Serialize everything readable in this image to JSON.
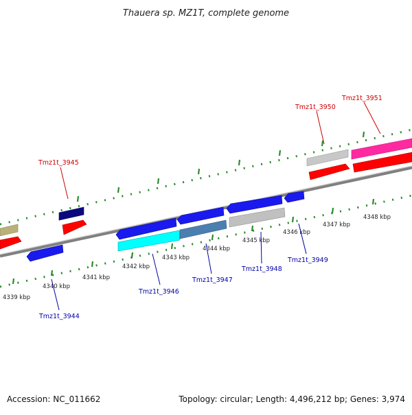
{
  "title": "Thauera sp. MZ1T, complete genome",
  "footer": {
    "accession": "Accession: NC_011662",
    "stats": "Topology: circular; Length: 4,496,212 bp; Genes: 3,974"
  },
  "colors": {
    "backbone": "#808080",
    "tick": "#2a8a2a",
    "label_top": "#cc0000",
    "label_bottom": "#0000aa"
  },
  "kbp_labels": [
    "4339 kbp",
    "4340 kbp",
    "4341 kbp",
    "4342 kbp",
    "4343 kbp",
    "4344 kbp",
    "4345 kbp",
    "4346 kbp",
    "4347 kbp",
    "4348 kbp"
  ],
  "gene_labels": {
    "top": [
      "Tmz1t_3945",
      "Tmz1t_3950",
      "Tmz1t_3951"
    ],
    "bottom": [
      "Tmz1t_3944",
      "Tmz1t_3946",
      "Tmz1t_3947",
      "Tmz1t_3948",
      "Tmz1t_3949"
    ]
  },
  "features": [
    {
      "strand": "forward-outer",
      "color": "#b8b27a"
    },
    {
      "strand": "forward-outer",
      "color": "#0a0a80"
    },
    {
      "strand": "forward-outer",
      "color": "#c8c8c8"
    },
    {
      "strand": "forward-outer",
      "color": "#ff2aa0"
    },
    {
      "strand": "forward-inner",
      "color": "#ff0000"
    },
    {
      "strand": "forward-inner",
      "color": "#ff0000"
    },
    {
      "strand": "forward-inner",
      "color": "#ff0000"
    },
    {
      "strand": "forward-inner",
      "color": "#ff0000"
    },
    {
      "strand": "reverse-inner",
      "color": "#1a1aee"
    },
    {
      "strand": "reverse-inner",
      "color": "#1a1aee"
    },
    {
      "strand": "reverse-inner",
      "color": "#1a1aee"
    },
    {
      "strand": "reverse-inner",
      "color": "#1a1aee"
    },
    {
      "strand": "reverse-inner",
      "color": "#1a1aee"
    },
    {
      "strand": "reverse-inner",
      "color": "#1a1aee"
    },
    {
      "strand": "reverse-outer",
      "color": "#00ffff"
    },
    {
      "strand": "reverse-outer",
      "color": "#4a7fb0"
    },
    {
      "strand": "reverse-outer",
      "color": "#c0c0c0"
    }
  ]
}
